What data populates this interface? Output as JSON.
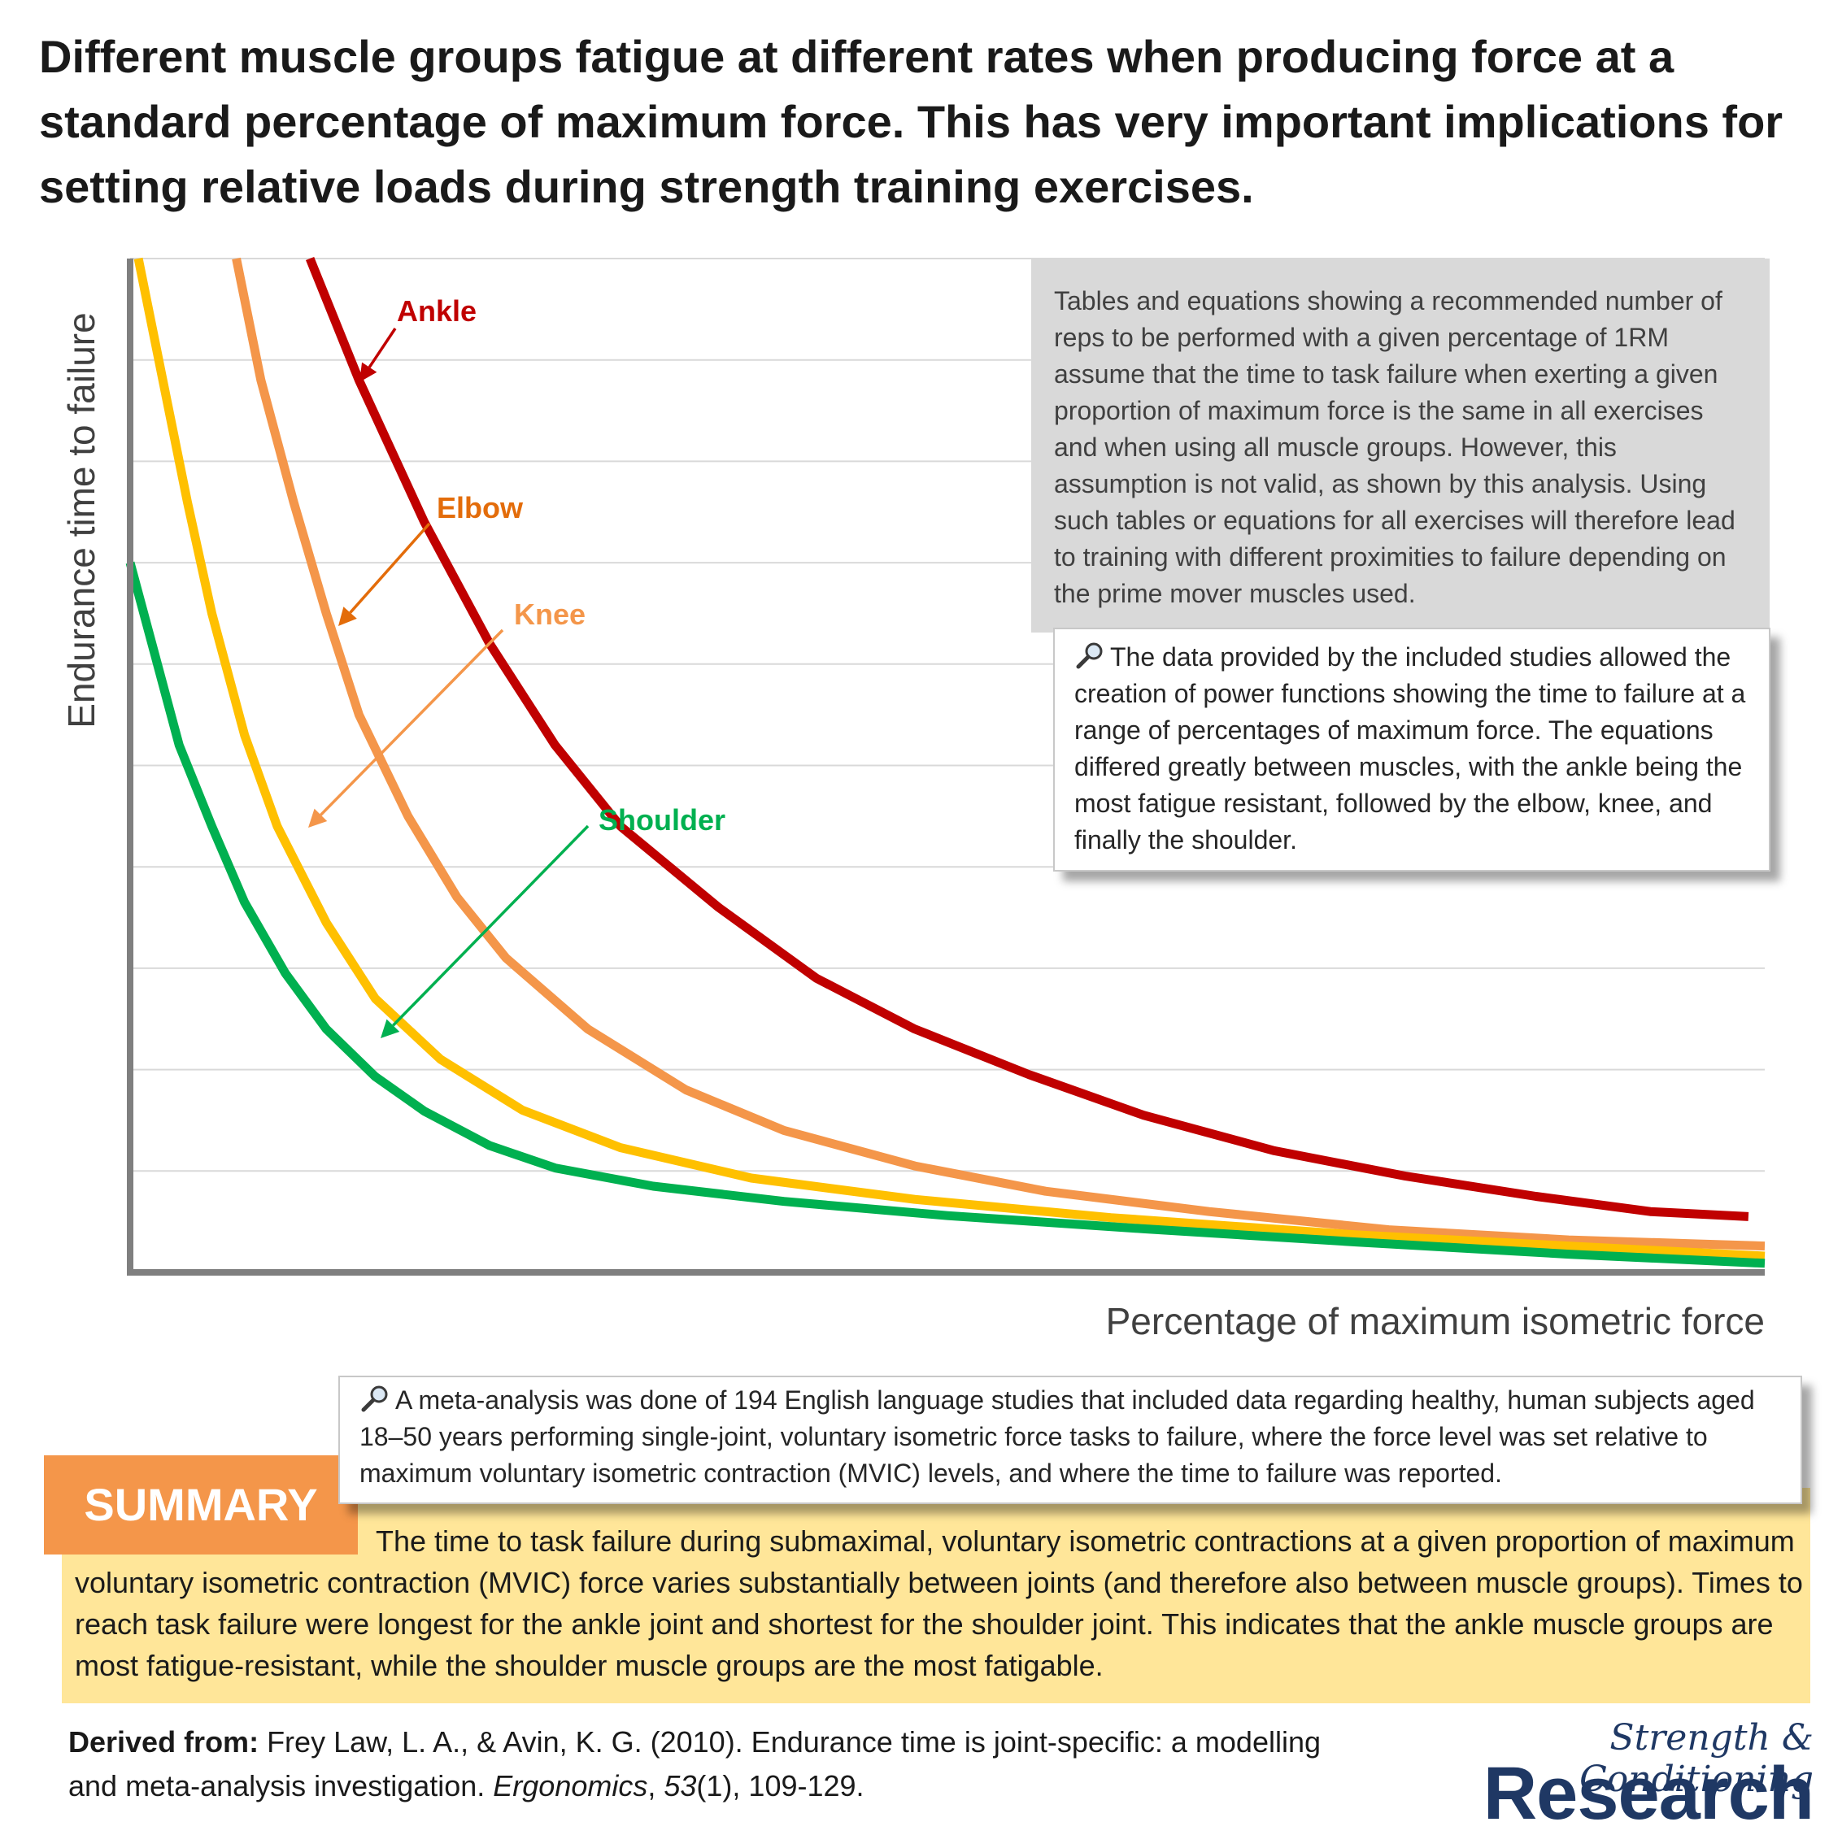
{
  "headline": "Different muscle groups fatigue at different rates when producing force at a standard percentage of maximum force. This has very important implications for setting relative loads during strength training exercises.",
  "gray_box": "Tables and equations showing a recommended number of reps to be performed with a given percentage of 1RM assume that the time to task failure when exerting a given proportion of maximum force is the same in all exercises and when using all muscle groups. However, this assumption is not valid, as shown by this analysis. Using such tables or equations for all exercises will therefore lead to training with different proximities to failure depending on the prime mover muscles used.",
  "note_power": "The data provided by the included studies allowed the creation of power functions showing the time to failure at a range of percentages of maximum force. The equations differed greatly between muscles, with the ankle being the most fatigue resistant, followed by the elbow, knee, and finally the shoulder.",
  "note_meta": "A meta-analysis was done of 194 English language studies that included data regarding healthy, human subjects aged 18–50 years performing single-joint, voluntary isometric force tasks to failure, where the force level was set relative to maximum voluntary isometric contraction (MVIC) levels, and where the time to failure was reported.",
  "summary": {
    "tag": "SUMMARY",
    "text": "The time to task failure during submaximal, voluntary isometric contractions at a given proportion of maximum voluntary isometric contraction (MVIC) force varies substantially between joints (and therefore also between muscle groups). Times to reach task failure were longest for the ankle joint and shortest for the shoulder joint. This indicates that the ankle muscle groups are most fatigue-resistant, while the shoulder muscle groups are the most fatigable."
  },
  "citation": {
    "label": "Derived from:",
    "before_journal": " Frey Law, L. A., & Avin, K. G. (2010). Endurance time is joint-specific: a modelling and meta-analysis investigation. ",
    "journal": "Ergonomics",
    "volume": "53",
    "rest": "(1), 109-129."
  },
  "logo": {
    "script": "Strength & Conditioning",
    "main": "Research"
  },
  "colors": {
    "ankle": "#c00000",
    "elbow": "#f4964a",
    "knee": "#ffc000",
    "shoulder": "#00b050",
    "ankle_label": "#c00000",
    "elbow_label": "#e36c0a",
    "knee_label": "#f4964a",
    "shoulder_label": "#00b050",
    "summary_bg": "#ffe699",
    "summary_tag": "#f4964a",
    "gray_box": "#d9d9d9",
    "logo": "#1f3864"
  },
  "chart_data": {
    "type": "line",
    "title": "",
    "xlabel": "Percentage of maximum isometric force",
    "ylabel": "Endurance time to failure",
    "xlim": [
      0,
      100
    ],
    "ylim": [
      0,
      100
    ],
    "grid": "horizontal",
    "ticks": "none",
    "series": [
      {
        "name": "Ankle",
        "color": "ankle",
        "label_color": "ankle_label",
        "x": [
          11,
          14,
          18,
          22,
          26,
          30,
          36,
          42,
          48,
          55,
          62,
          70,
          78,
          86,
          93,
          99
        ],
        "y": [
          100,
          88,
          74,
          62,
          52,
          44,
          36,
          29,
          24,
          19.5,
          15.5,
          12,
          9.5,
          7.5,
          6,
          5.5
        ]
      },
      {
        "name": "Elbow",
        "color": "elbow",
        "label_color": "elbow_label",
        "x": [
          6.5,
          8,
          10,
          12,
          14,
          17,
          20,
          23,
          28,
          34,
          40,
          48,
          56,
          66,
          77,
          88,
          100
        ],
        "y": [
          100,
          88,
          76,
          65,
          55,
          45,
          37,
          31,
          24,
          18,
          14,
          10.5,
          8,
          6,
          4.2,
          3.2,
          2.6
        ]
      },
      {
        "name": "Knee",
        "color": "knee",
        "label_color": "knee_label",
        "x": [
          0.5,
          2,
          3.5,
          5,
          7,
          9,
          12,
          15,
          19,
          24,
          30,
          38,
          48,
          60,
          75,
          88,
          100
        ],
        "y": [
          100,
          88,
          76,
          65,
          53,
          44,
          34.5,
          27,
          21,
          16,
          12.3,
          9.3,
          7.2,
          5.4,
          3.7,
          2.6,
          1.6
        ]
      },
      {
        "name": "Shoulder",
        "color": "shoulder",
        "label_color": "shoulder_label",
        "x": [
          0,
          1.5,
          3,
          5,
          7,
          9.5,
          12,
          15,
          18,
          22,
          26,
          32,
          40,
          50,
          62,
          75,
          88,
          100
        ],
        "y": [
          70,
          61,
          52,
          44,
          36.5,
          29.5,
          24,
          19.3,
          15.9,
          12.5,
          10.3,
          8.5,
          7,
          5.6,
          4.3,
          3,
          1.8,
          0.9
        ]
      }
    ]
  }
}
